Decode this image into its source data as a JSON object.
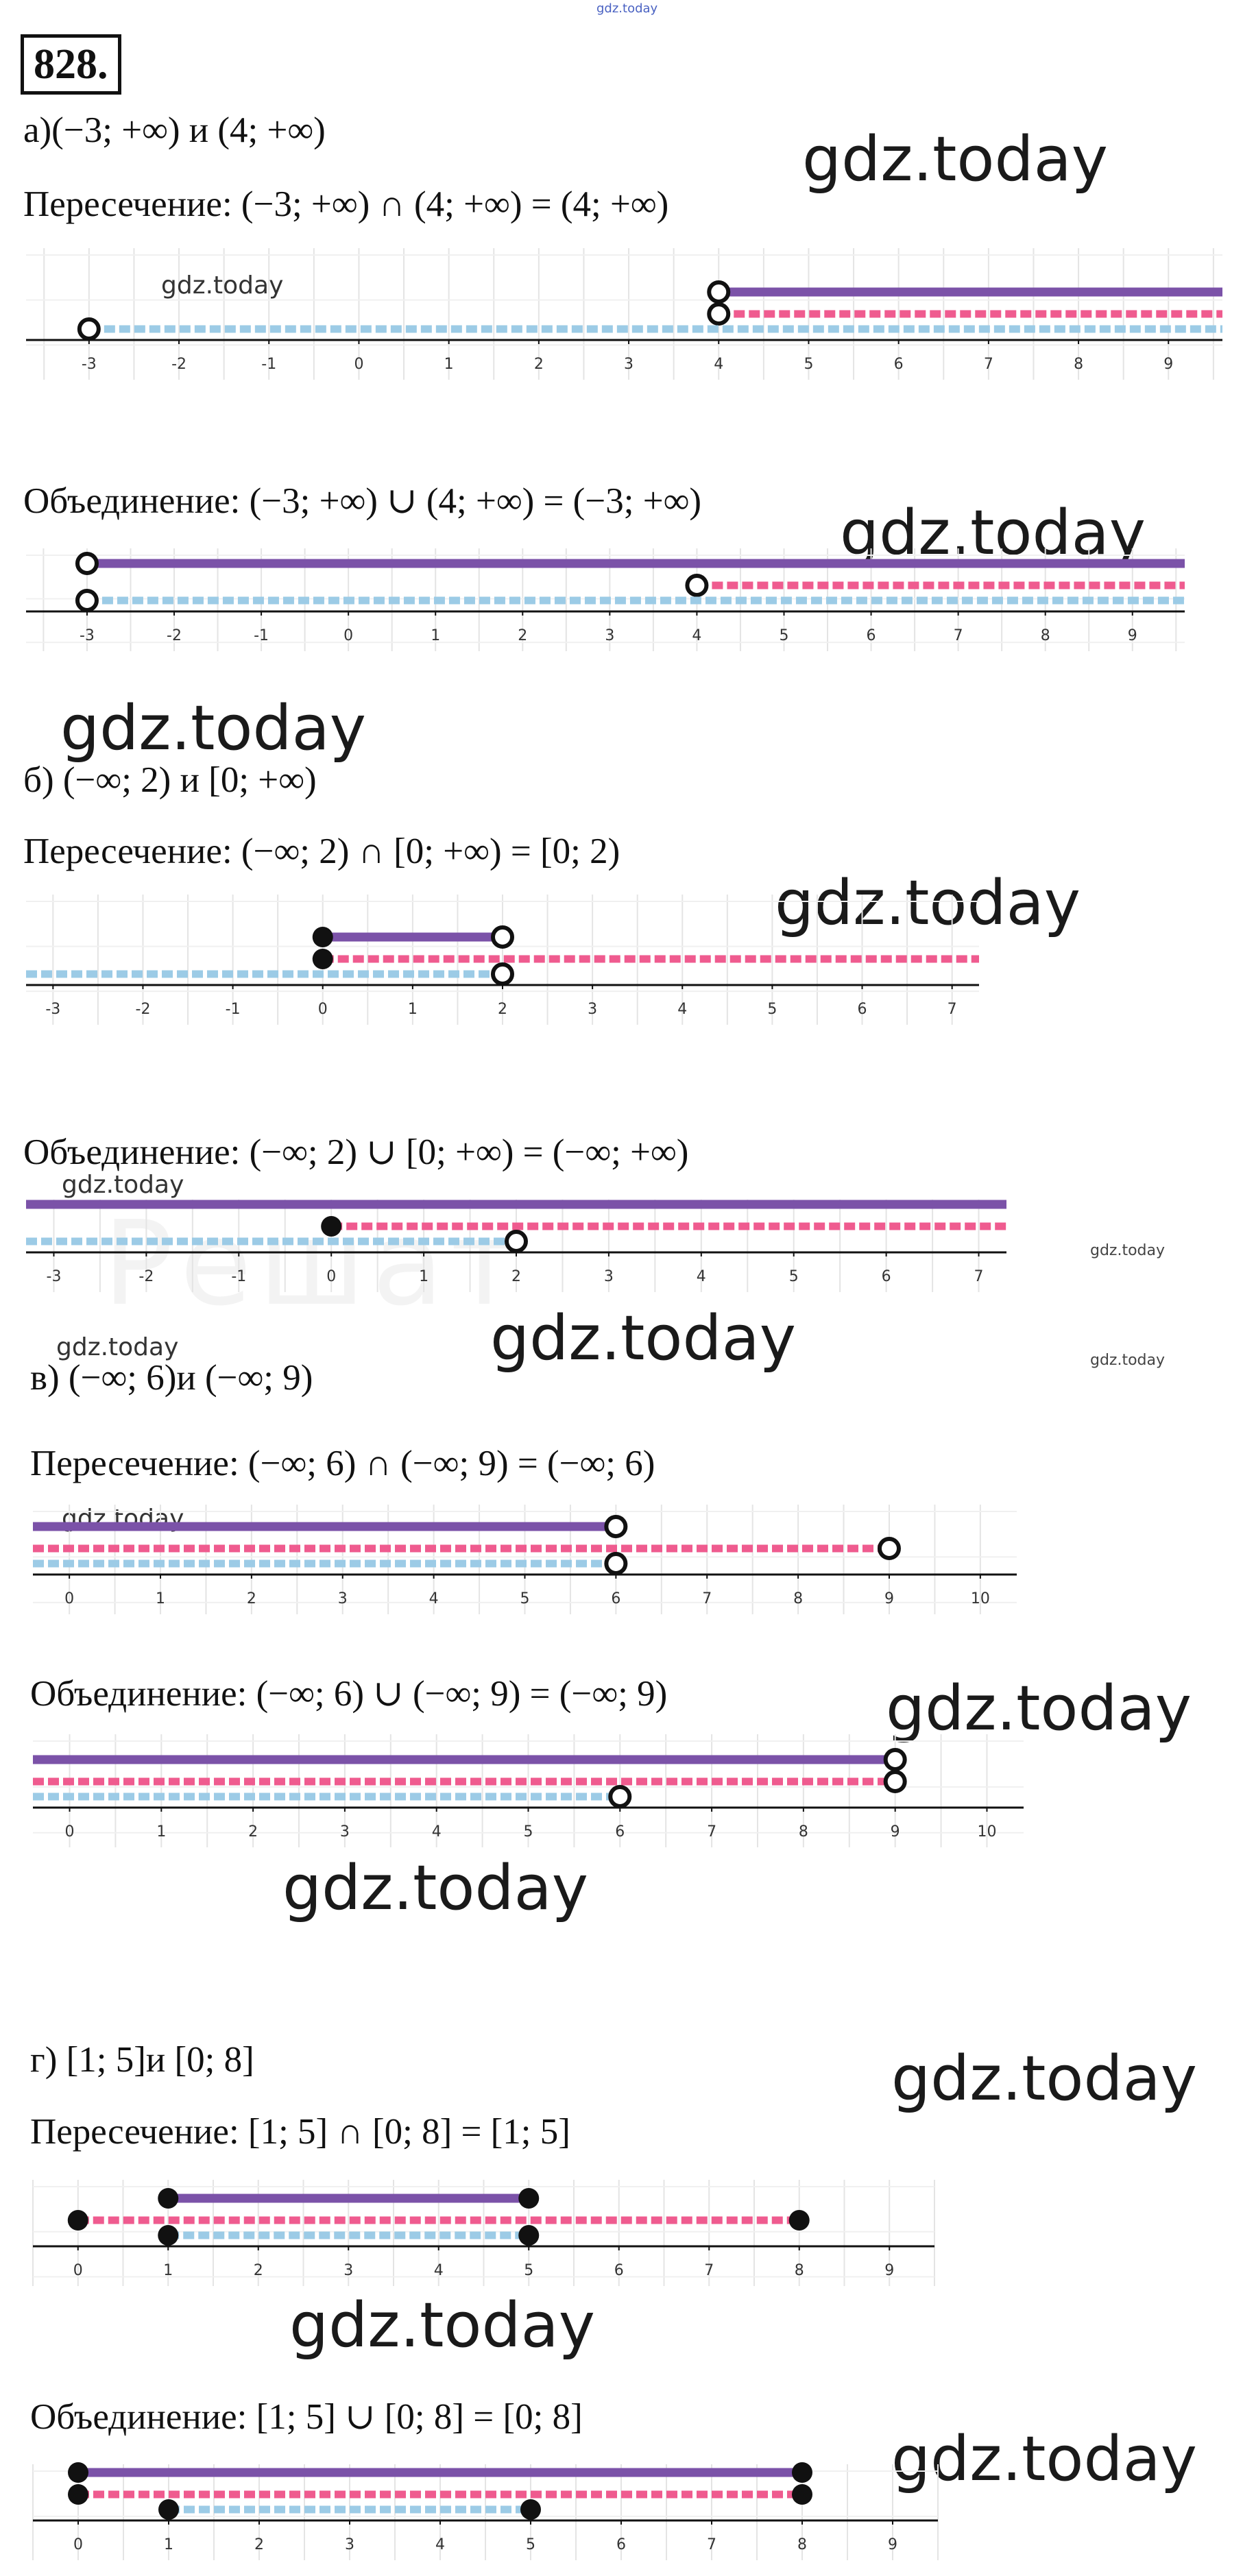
{
  "top_watermark": "gdz.today",
  "problem_number": "828.",
  "watermark": "gdz.today",
  "colors": {
    "result": "#7b52a8",
    "second": "#ef5b8f",
    "first": "#9ccbe6",
    "axis": "#111111",
    "grid": "#e4e4e4"
  },
  "parts": [
    {
      "heading": "а)(−3; +∞) и (4; +∞)",
      "intersection": "Пересечение: (−3; +∞) ∩  (4; +∞) = (4; +∞)",
      "union": "Объединение: (−3; +∞) ∪ (4; +∞) = (−3; +∞)"
    },
    {
      "heading": "б) (−∞; 2) и  [0; +∞)",
      "intersection": "Пересечение: (−∞; 2)  ∩   [0; +∞) = [0; 2)",
      "union": "Объединение: (−∞; 2) ∪ [0; +∞) = (−∞; +∞)"
    },
    {
      "heading": "в)  (−∞; 6)и (−∞; 9)",
      "intersection": "Пересечение: (−∞; 6) ∩  (−∞; 9) = (−∞; 6)",
      "union": "Объединение: (−∞; 6) ∪ (−∞; 9) = (−∞; 9)"
    },
    {
      "heading": "г) [1; 5]и [0; 8]",
      "intersection": "Пересечение: [1; 5] ∩  [0; 8] = [1; 5]",
      "union": "Объединение: [1; 5] ∪  [0; 8] = [0; 8]"
    }
  ],
  "number_lines": [
    {
      "id": "a-intersection",
      "min": -3.7,
      "max": 9.6,
      "ticks": [
        -3,
        -2,
        -1,
        0,
        1,
        2,
        3,
        4,
        5,
        6,
        7,
        8,
        9
      ],
      "segments": [
        {
          "role": "result",
          "from": 4,
          "to": null,
          "from_closed": false,
          "to_closed": false
        },
        {
          "role": "second",
          "from": 4,
          "to": null,
          "from_closed": false,
          "to_closed": false
        },
        {
          "role": "first",
          "from": -3,
          "to": null,
          "from_closed": false,
          "to_closed": false
        }
      ]
    },
    {
      "id": "a-union",
      "min": -3.7,
      "max": 9.6,
      "ticks": [
        -3,
        -2,
        -1,
        0,
        1,
        2,
        3,
        4,
        5,
        6,
        7,
        8,
        9
      ],
      "segments": [
        {
          "role": "result",
          "from": -3,
          "to": null,
          "from_closed": false,
          "to_closed": false
        },
        {
          "role": "second",
          "from": 4,
          "to": null,
          "from_closed": false,
          "to_closed": false
        },
        {
          "role": "first",
          "from": -3,
          "to": null,
          "from_closed": false,
          "to_closed": false
        }
      ]
    },
    {
      "id": "b-intersection",
      "min": -3.3,
      "max": 7.3,
      "ticks": [
        -3,
        -2,
        -1,
        0,
        1,
        2,
        3,
        4,
        5,
        6,
        7
      ],
      "segments": [
        {
          "role": "result",
          "from": 0,
          "to": 2,
          "from_closed": true,
          "to_closed": false
        },
        {
          "role": "second",
          "from": 0,
          "to": null,
          "from_closed": true,
          "to_closed": false
        },
        {
          "role": "first",
          "from": null,
          "to": 2,
          "from_closed": false,
          "to_closed": false
        }
      ]
    },
    {
      "id": "b-union",
      "min": -3.3,
      "max": 7.3,
      "ticks": [
        -3,
        -2,
        -1,
        0,
        1,
        2,
        3,
        4,
        5,
        6,
        7
      ],
      "segments": [
        {
          "role": "result",
          "from": null,
          "to": null,
          "from_closed": false,
          "to_closed": false
        },
        {
          "role": "second",
          "from": 0,
          "to": null,
          "from_closed": true,
          "to_closed": false
        },
        {
          "role": "first",
          "from": null,
          "to": 2,
          "from_closed": false,
          "to_closed": false
        }
      ]
    },
    {
      "id": "c-intersection",
      "min": -0.4,
      "max": 10.4,
      "ticks": [
        0,
        1,
        2,
        3,
        4,
        5,
        6,
        7,
        8,
        9,
        10
      ],
      "segments": [
        {
          "role": "result",
          "from": null,
          "to": 6,
          "from_closed": false,
          "to_closed": false
        },
        {
          "role": "second",
          "from": null,
          "to": 9,
          "from_closed": false,
          "to_closed": false
        },
        {
          "role": "first",
          "from": null,
          "to": 6,
          "from_closed": false,
          "to_closed": false
        }
      ]
    },
    {
      "id": "c-union",
      "min": -0.4,
      "max": 10.4,
      "ticks": [
        0,
        1,
        2,
        3,
        4,
        5,
        6,
        7,
        8,
        9,
        10
      ],
      "segments": [
        {
          "role": "result",
          "from": null,
          "to": 9,
          "from_closed": false,
          "to_closed": false
        },
        {
          "role": "second",
          "from": null,
          "to": 9,
          "from_closed": false,
          "to_closed": false
        },
        {
          "role": "first",
          "from": null,
          "to": 6,
          "from_closed": false,
          "to_closed": false
        }
      ]
    },
    {
      "id": "d-intersection",
      "min": -0.5,
      "max": 9.5,
      "ticks": [
        0,
        1,
        2,
        3,
        4,
        5,
        6,
        7,
        8,
        9
      ],
      "segments": [
        {
          "role": "result",
          "from": 1,
          "to": 5,
          "from_closed": true,
          "to_closed": true
        },
        {
          "role": "second",
          "from": 0,
          "to": 8,
          "from_closed": true,
          "to_closed": true
        },
        {
          "role": "first",
          "from": 1,
          "to": 5,
          "from_closed": true,
          "to_closed": true
        }
      ]
    },
    {
      "id": "d-union",
      "min": -0.5,
      "max": 9.5,
      "ticks": [
        0,
        1,
        2,
        3,
        4,
        5,
        6,
        7,
        8,
        9
      ],
      "segments": [
        {
          "role": "result",
          "from": 0,
          "to": 8,
          "from_closed": true,
          "to_closed": true
        },
        {
          "role": "second",
          "from": 0,
          "to": 8,
          "from_closed": true,
          "to_closed": true
        },
        {
          "role": "first",
          "from": 1,
          "to": 5,
          "from_closed": true,
          "to_closed": true
        }
      ]
    }
  ]
}
